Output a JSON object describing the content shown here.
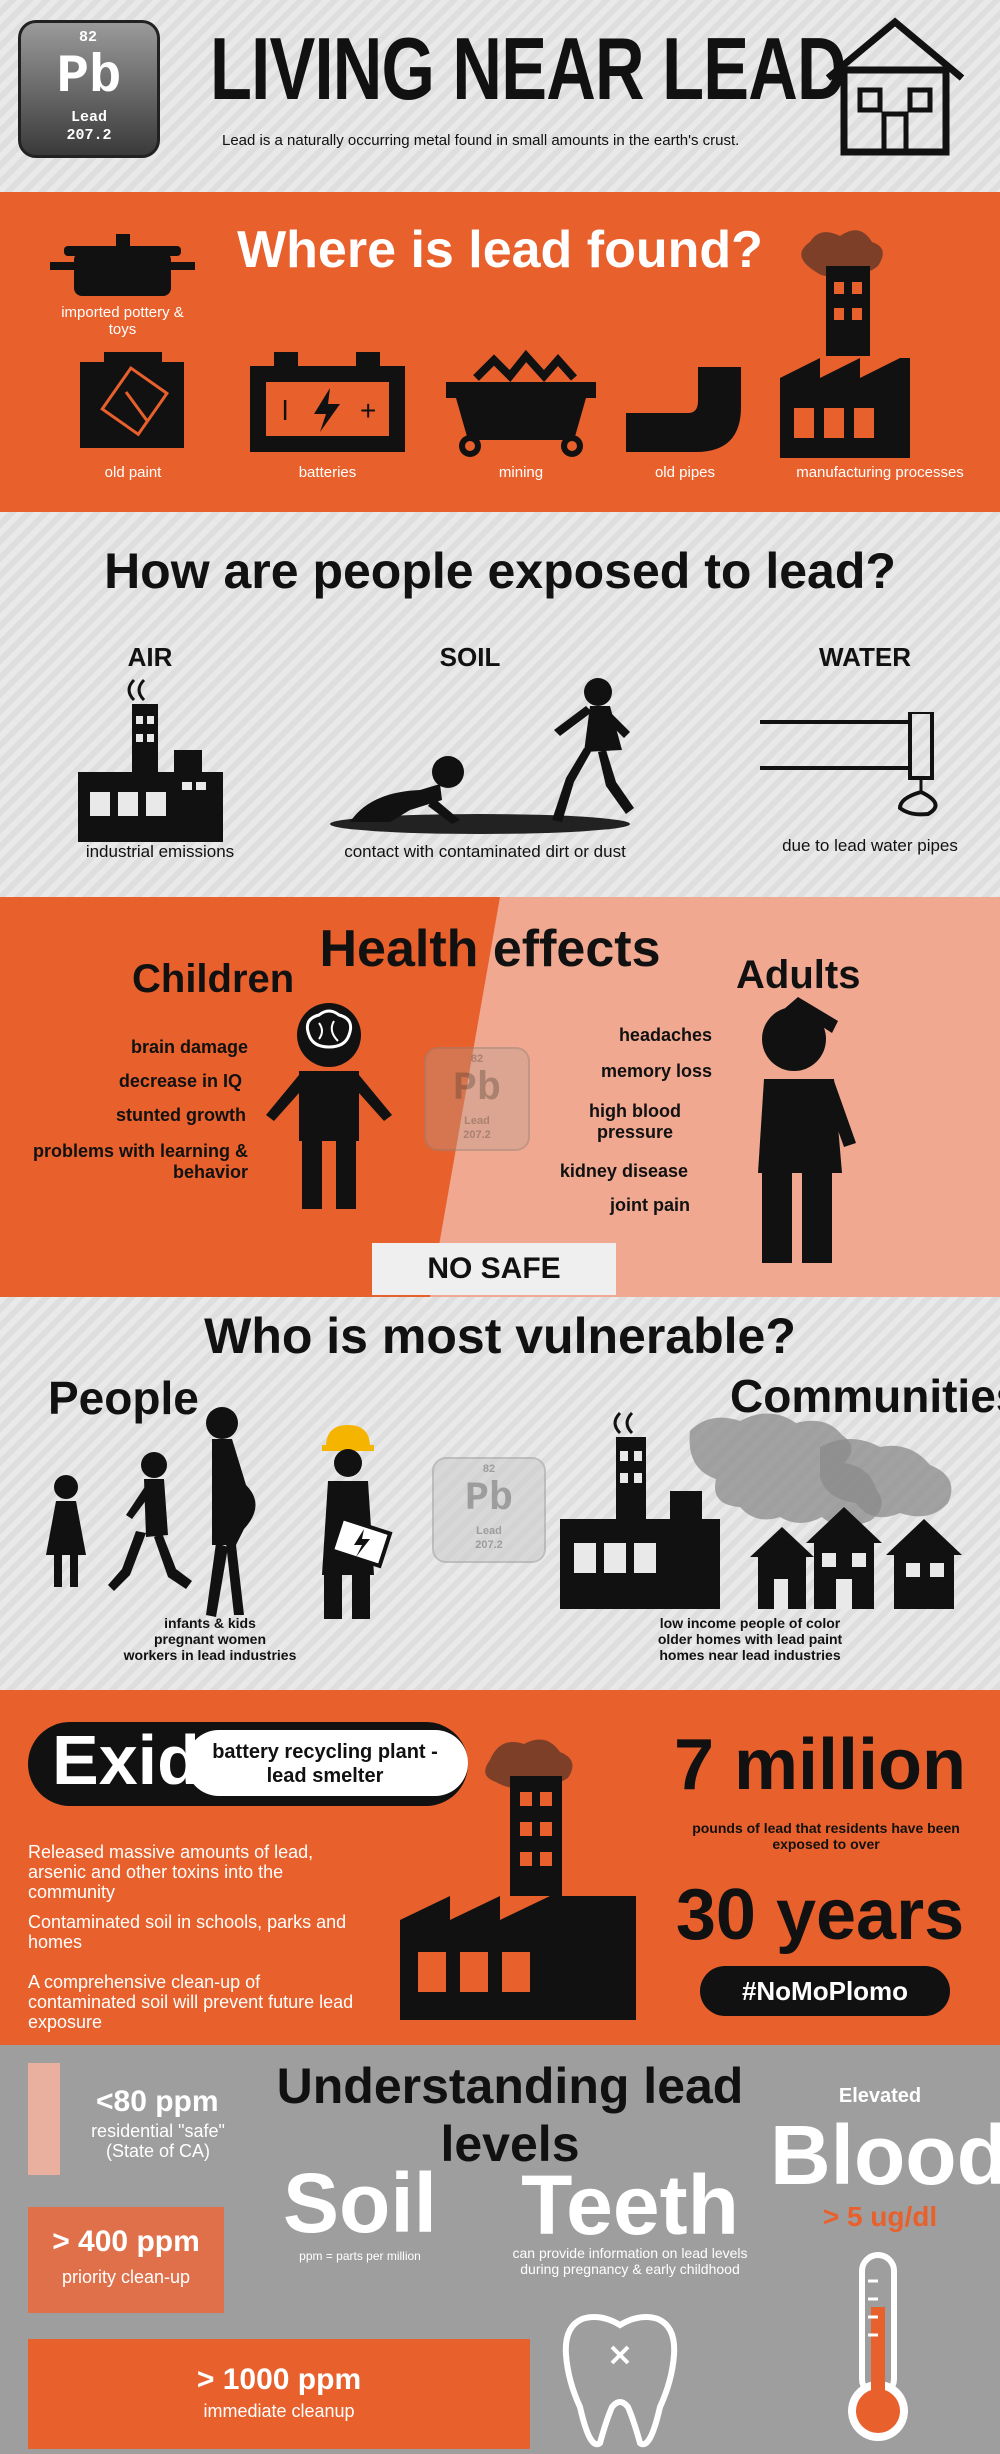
{
  "colors": {
    "orange": "#e8602c",
    "light_orange": "#f0a890",
    "gray": "#9e9e9e",
    "dark": "#111111"
  },
  "element": {
    "number": "82",
    "symbol": "Pb",
    "name": "Lead",
    "mass": "207.2"
  },
  "header": {
    "title": "LIVING NEAR LEAD",
    "subtitle": "Lead is a naturally occurring metal found in small amounts in the earth's crust."
  },
  "found": {
    "title": "Where is lead found?",
    "items": [
      "imported pottery & toys",
      "old paint",
      "batteries",
      "mining",
      "old pipes",
      "manufacturing processes"
    ]
  },
  "exposure": {
    "title": "How are people exposed to lead?",
    "items": [
      {
        "heading": "AIR",
        "caption": "industrial emissions"
      },
      {
        "heading": "SOIL",
        "caption": "contact with contaminated dirt or dust"
      },
      {
        "heading": "WATER",
        "caption": "due to lead water pipes"
      }
    ]
  },
  "health": {
    "title": "Health effects",
    "children_heading": "Children",
    "children": [
      "brain damage",
      "decrease in IQ",
      "stunted growth",
      "problems with learning & behavior"
    ],
    "adults_heading": "Adults",
    "adults": [
      "headaches",
      "memory loss",
      "high blood pressure",
      "kidney disease",
      "joint pain"
    ],
    "banner": "NO SAFE LEVELS"
  },
  "vulnerable": {
    "title": "Who is most vulnerable?",
    "people_heading": "People",
    "people": [
      "infants & kids",
      "pregnant women",
      "workers in lead industries"
    ],
    "communities_heading": "Communities",
    "communities": [
      "low income people of color",
      "older homes with lead paint",
      "homes near lead industries"
    ]
  },
  "exide": {
    "name": "Exide",
    "tag": "battery recycling plant - lead smelter",
    "facts": [
      "Released massive amounts of lead, arsenic and other toxins into the community",
      "Contaminated soil in schools, parks and homes",
      "A comprehensive clean-up of contaminated soil will prevent future lead exposure"
    ],
    "stat1": "7 million",
    "stat1_caption": "pounds of lead that residents have been exposed to over",
    "stat2": "30 years",
    "hashtag": "#NoMoPlomo"
  },
  "levels": {
    "title": "Understanding lead levels",
    "ppm80": "<80 ppm",
    "ppm80_caption": "residential \"safe\" (State of CA)",
    "ppm400": "> 400 ppm",
    "ppm400_caption": "priority clean-up",
    "ppm1000": "> 1000 ppm",
    "ppm1000_caption": "immediate cleanup",
    "soil": "Soil",
    "soil_caption": "ppm = parts per million",
    "teeth": "Teeth",
    "teeth_caption": "can provide information on lead levels during pregnancy & early childhood",
    "elevated": "Elevated",
    "blood": "Blood",
    "blood_value": "> 5 ug/dl"
  }
}
